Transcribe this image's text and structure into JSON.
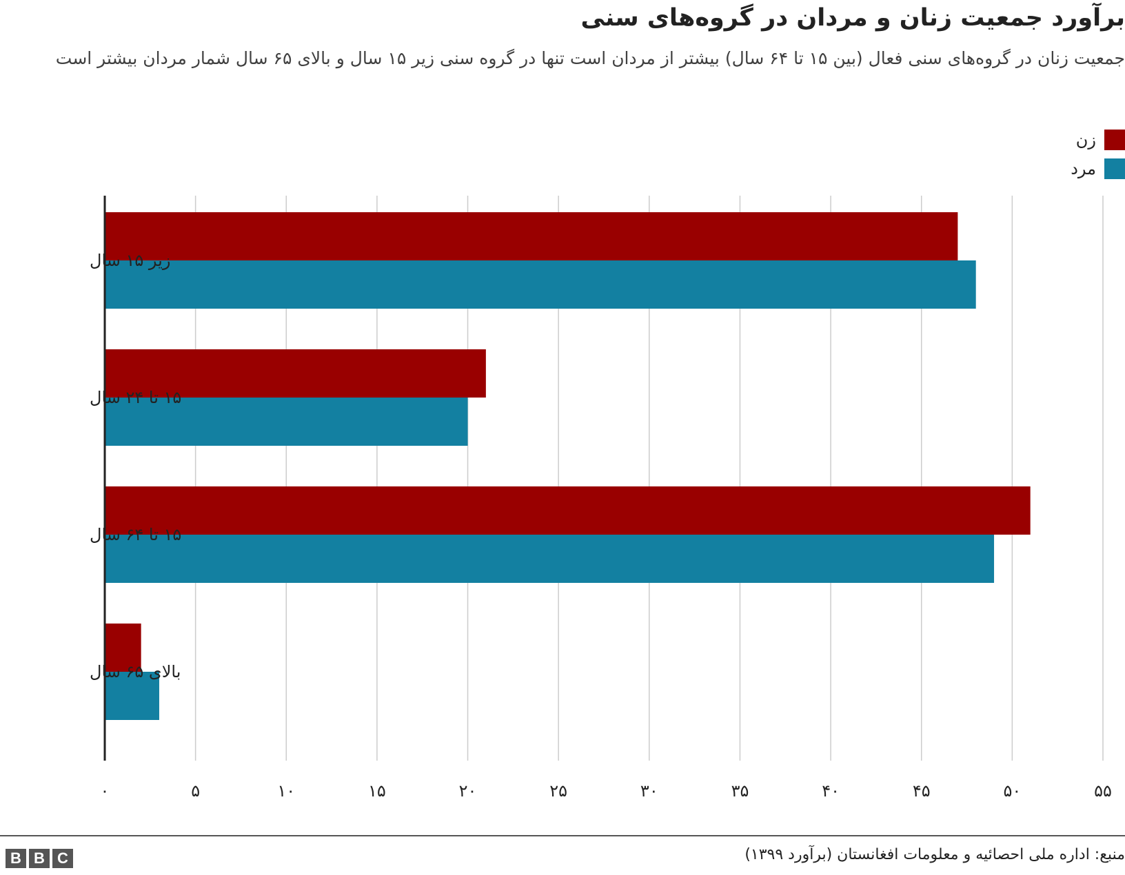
{
  "chart_data": {
    "type": "bar",
    "orientation": "horizontal",
    "title": "برآورد جمعیت زنان و مردان در گروه‌های سنی",
    "subtitle": "جمعیت زنان در گروه‌های سنی فعال (بین ۱۵ تا ۶۴ سال) بیشتر از مردان است تنها در گروه سنی زیر ۱۵ سال و بالای ۶۵ سال شمار مردان بیشتر است",
    "categories": [
      "زیر ۱۵ سال",
      "۱۵ تا ۲۴ سال",
      "۱۵ تا ۶۴ سال",
      "بالای ۶۵ سال"
    ],
    "series": [
      {
        "name": "زن",
        "color": "#990000",
        "values": [
          47,
          21,
          51,
          2
        ]
      },
      {
        "name": "مرد",
        "color": "#1380a1",
        "values": [
          48,
          20,
          49,
          3
        ]
      }
    ],
    "xlim": [
      0,
      55
    ],
    "xticks": [
      0,
      5,
      10,
      15,
      20,
      25,
      30,
      35,
      40,
      45,
      50,
      55
    ],
    "xtick_labels": [
      "۰",
      "۵",
      "۱۰",
      "۱۵",
      "۲۰",
      "۲۵",
      "۳۰",
      "۳۵",
      "۴۰",
      "۴۵",
      "۵۰",
      "۵۵"
    ],
    "grid": true,
    "legend_position": "top-right"
  },
  "footer": {
    "source": "منبع: اداره ملی احصائیه و معلومات افغانستان (برآورد ۱۳۹۹)",
    "logo_letters": [
      "B",
      "B",
      "C"
    ]
  }
}
